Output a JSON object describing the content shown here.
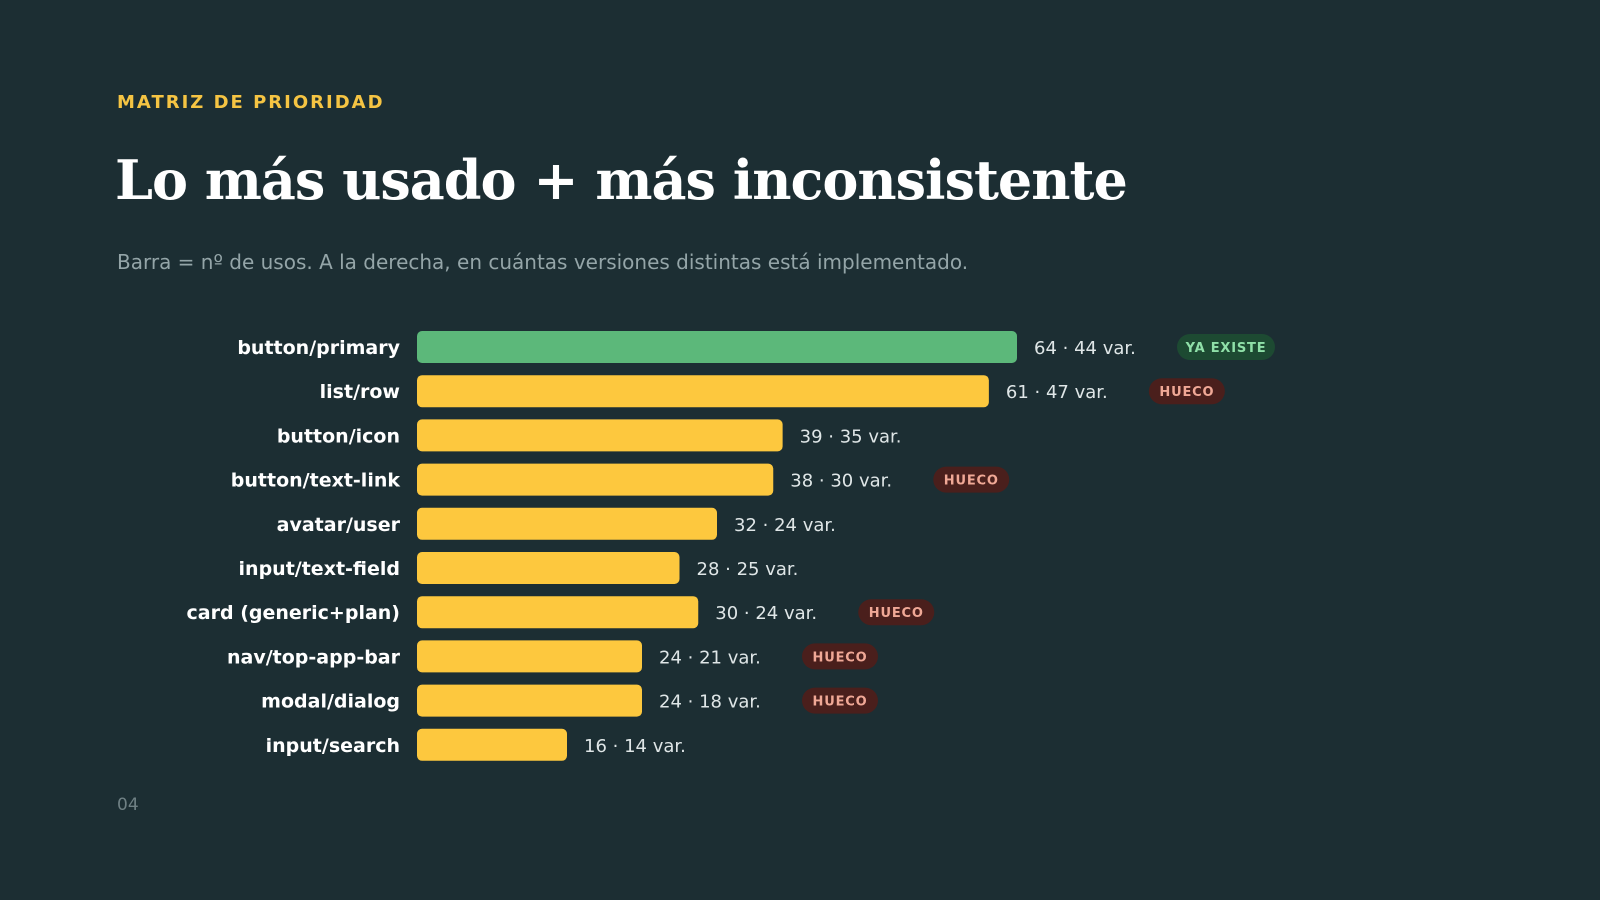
{
  "header": {
    "eyebrow": "MATRIZ DE PRIORIDAD",
    "title": "Lo más usado + más inconsistente",
    "subtitle": "Barra = nº de usos.  A la derecha, en cuántas versiones distintas está implementado."
  },
  "footer": {
    "page_number": "04"
  },
  "colors": {
    "background": "#1c2e33",
    "accent": "#f5c443",
    "bar_default": "#fdc83e",
    "bar_exists": "#5cb87a",
    "badge_gap_bg": "#4a1f1c",
    "badge_gap_text": "#f0a896",
    "badge_exists_bg": "#1d4a32",
    "badge_exists_text": "#8fe0a8"
  },
  "chart_data": {
    "type": "bar",
    "orientation": "horizontal",
    "title": "",
    "xlabel": "",
    "ylabel": "",
    "xlim": [
      0,
      64
    ],
    "grid": false,
    "categories": [
      "button/primary",
      "list/row",
      "button/icon",
      "button/text-link",
      "avatar/user",
      "input/text-field",
      "card (generic+plan)",
      "nav/top-app-bar",
      "modal/dialog",
      "input/search"
    ],
    "values": [
      64,
      61,
      39,
      38,
      32,
      28,
      30,
      24,
      24,
      16
    ],
    "variants": [
      44,
      47,
      35,
      30,
      24,
      25,
      24,
      21,
      18,
      14
    ],
    "value_labels": [
      "64 · 44 var.",
      "61 · 47 var.",
      "39 · 35 var.",
      "38 · 30 var.",
      "32 · 24 var.",
      "28 · 25 var.",
      "30 · 24 var.",
      "24 · 21 var.",
      "24 · 18 var.",
      "16 · 14 var."
    ],
    "badges": [
      "YA EXISTE",
      "HUECO",
      "",
      "HUECO",
      "",
      "",
      "HUECO",
      "HUECO",
      "HUECO",
      ""
    ],
    "badge_types": [
      "exists",
      "gap",
      "",
      "gap",
      "",
      "",
      "gap",
      "gap",
      "gap",
      ""
    ]
  }
}
